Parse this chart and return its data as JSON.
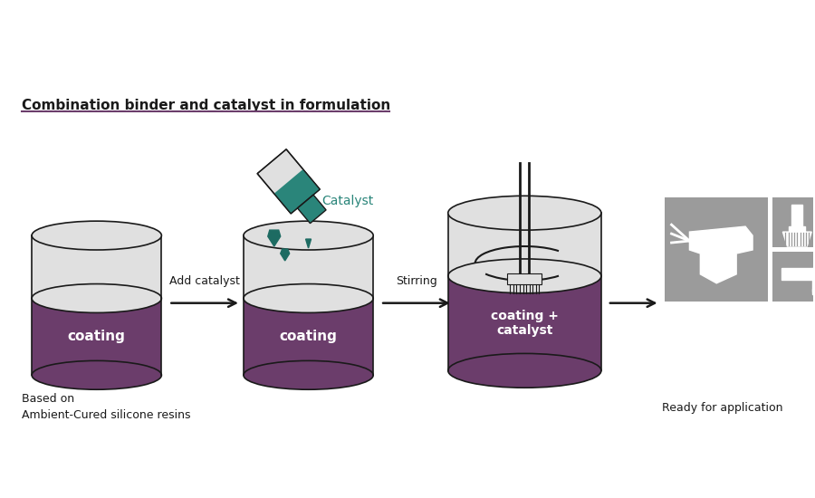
{
  "title": "Combination binder and catalyst in formulation",
  "bg_color": "#ffffff",
  "purple": "#6b3d6b",
  "gray_light": "#ebebeb",
  "gray_can_top": "#e0e0e0",
  "icon_gray": "#9b9b9b",
  "teal": "#2a857a",
  "teal_dark": "#1d6b62",
  "black": "#1a1a1a",
  "dark_gray": "#555555",
  "label1": "coating",
  "label2": "coating",
  "label3": "coating +\ncatalyst",
  "arrow1_label": "Add catalyst",
  "arrow2_label": "Stirring",
  "bottom_left": "Based on\nAmbient-Cured silicone resins",
  "bottom_right": "Ready for application",
  "catalyst_label": "Catalyst"
}
